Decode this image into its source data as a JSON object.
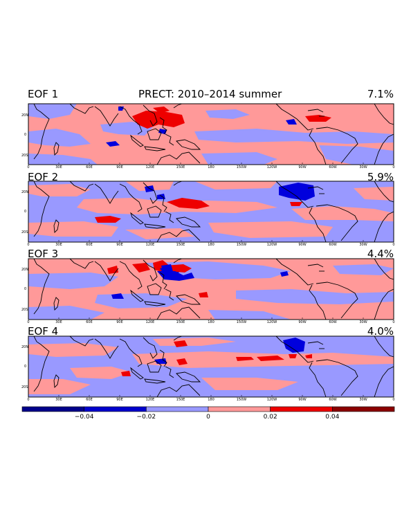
{
  "figure": {
    "title": "PRECT: 2010–2014 summer",
    "domain": "tropical belt, 0°–360° longitude, 30S–30N"
  },
  "panels": [
    {
      "label": "EOF 1",
      "variance": "7.1%"
    },
    {
      "label": "EOF 2",
      "variance": "5.9%"
    },
    {
      "label": "EOF 3",
      "variance": "4.4%"
    },
    {
      "label": "EOF 4",
      "variance": "4.0%"
    }
  ],
  "lon_ticks": [
    "0",
    "30E",
    "60E",
    "90E",
    "120E",
    "150E",
    "180",
    "150W",
    "120W",
    "90W",
    "60W",
    "30W",
    "0"
  ],
  "lat_ticks": [
    "20N",
    "0",
    "20S"
  ],
  "colorbar": {
    "labels": [
      "−0.04",
      "−0.02",
      "0",
      "0.02",
      "0.04"
    ],
    "colors": [
      "#00008b",
      "#0000cd",
      "#9999ff",
      "#ff9999",
      "#ee0000",
      "#8b0000"
    ]
  },
  "colors": {
    "negative_fill": "#9999ff",
    "positive_fill": "#ff9999",
    "strong_negative": "#0000dd",
    "strong_positive": "#ee0000"
  }
}
